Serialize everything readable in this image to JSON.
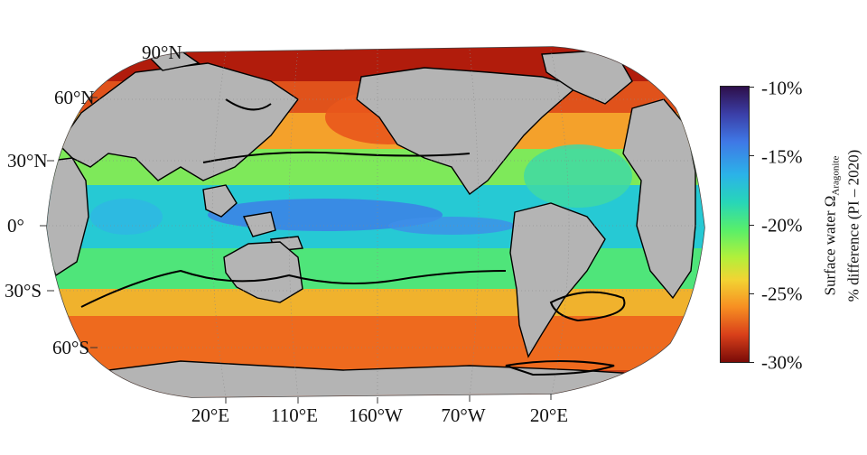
{
  "map": {
    "projection": "Robinson",
    "central_meridian": "160°W",
    "lat_labels": [
      "90°N",
      "60°N",
      "30°N",
      "0°",
      "30°S",
      "60°S"
    ],
    "lon_labels": [
      "20°E",
      "110°E",
      "160°W",
      "70°W",
      "20°E"
    ],
    "land_color": "#b4b4b4",
    "contour_color": "#000000"
  },
  "colorbar": {
    "title_line1_prefix": "Surface water Ω",
    "title_line1_sub": "Aragonite",
    "title_line2": "% difference (PI – 2020)",
    "ticks": [
      "-10%",
      "-15%",
      "-20%",
      "-25%",
      "-30%"
    ],
    "range": [
      -30,
      -10
    ]
  }
}
